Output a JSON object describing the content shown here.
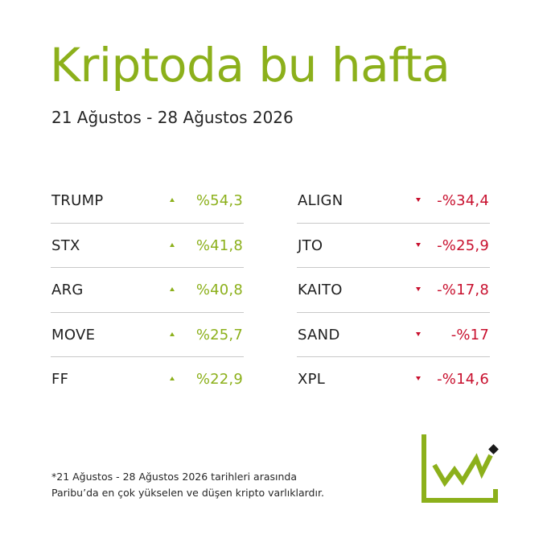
{
  "header": {
    "title": "Kriptoda bu hafta",
    "date_range": "21 Ağustos - 28 Ağustos 2026"
  },
  "gainers": [
    {
      "name": "TRUMP",
      "change": "%54,3"
    },
    {
      "name": "STX",
      "change": "%41,8"
    },
    {
      "name": "ARG",
      "change": "%40,8"
    },
    {
      "name": "MOVE",
      "change": "%25,7"
    },
    {
      "name": "FF",
      "change": "%22,9"
    }
  ],
  "losers": [
    {
      "name": "ALIGN",
      "change": "-%34,4"
    },
    {
      "name": "JTO",
      "change": "-%25,9"
    },
    {
      "name": "KAITO",
      "change": "-%17,8"
    },
    {
      "name": "SAND",
      "change": "-%17"
    },
    {
      "name": "XPL",
      "change": "-%14,6"
    }
  ],
  "footnote": {
    "line1": "*21 Ağustos - 28 Ağustos 2026 tarihleri arasında",
    "line2": "Paribu’da en çok yükselen ve düşen kripto varlıklardır."
  },
  "colors": {
    "accent_green": "#8cb01b",
    "loss_red": "#c8102e",
    "text_dark": "#1f1f1f",
    "divider": "#c8c8c8"
  },
  "icons": {
    "gain_arrow": "triangle-up-icon",
    "loss_arrow": "triangle-down-icon",
    "logo": "trend-chart-logo-icon"
  }
}
